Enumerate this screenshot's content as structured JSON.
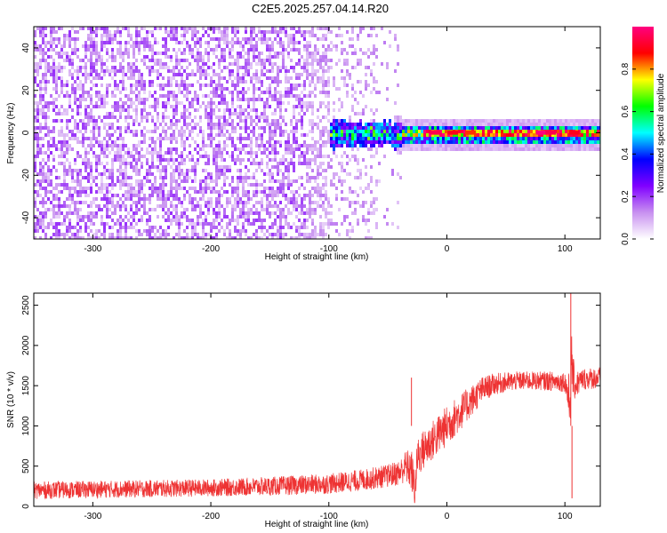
{
  "title": "C2E5.2025.257.04.14.R20",
  "chart_data": [
    {
      "type": "heatmap",
      "xlabel": "Height of straight line (km)",
      "ylabel": "Frequency (Hz)",
      "xlim": [
        -350,
        130
      ],
      "ylim": [
        -50,
        50
      ],
      "xticks": [
        -300,
        -200,
        -100,
        0,
        100
      ],
      "xtick_labels": [
        "-300",
        "-200",
        "-100",
        "0",
        "100"
      ],
      "yticks": [
        -40,
        -20,
        0,
        20,
        40
      ],
      "ytick_labels": [
        "-40",
        "-20",
        "0",
        "20",
        "40"
      ],
      "colorbar": {
        "label": "Normalized spectral amplitude",
        "range": [
          0,
          1
        ],
        "ticks": [
          0,
          0.2,
          0.4,
          0.6,
          0.8
        ],
        "tick_labels": [
          "0.0",
          "0.2",
          "0.4",
          "0.6",
          "0.8"
        ],
        "colormap": [
          "#ffffff",
          "#c890f0",
          "#8000ff",
          "#0000ff",
          "#00ffff",
          "#00ff00",
          "#ffff00",
          "#ff0000",
          "#ff0080"
        ]
      },
      "description_points": {
        "noise_region_x": [
          -350,
          -40
        ],
        "signal_band_center_hz": 0,
        "signal_band_start_km": -100
      }
    },
    {
      "type": "line",
      "xlabel": "Height of straight line (km)",
      "ylabel": "SNR (10 * v/v)",
      "xlim": [
        -350,
        130
      ],
      "ylim": [
        0,
        2650
      ],
      "xticks": [
        -300,
        -200,
        -100,
        0,
        100
      ],
      "xtick_labels": [
        "-300",
        "-200",
        "-100",
        "0",
        "100"
      ],
      "yticks": [
        0,
        500,
        1000,
        1500,
        2000,
        2500
      ],
      "ytick_labels": [
        "0",
        "500",
        "1000",
        "1500",
        "2000",
        "2500"
      ],
      "line_color": "#ee3333",
      "envelope": {
        "x": [
          -350,
          -300,
          -250,
          -200,
          -150,
          -100,
          -70,
          -50,
          -40,
          -35,
          -30,
          -27,
          -25,
          -20,
          -10,
          0,
          10,
          20,
          30,
          40,
          60,
          80,
          100,
          104,
          106,
          108,
          115,
          130
        ],
        "mean": [
          200,
          210,
          220,
          230,
          250,
          280,
          330,
          380,
          420,
          500,
          450,
          200,
          600,
          700,
          850,
          1000,
          1150,
          1300,
          1450,
          1520,
          1560,
          1560,
          1550,
          1300,
          1800,
          1500,
          1580,
          1600
        ],
        "spread": [
          120,
          120,
          120,
          120,
          130,
          140,
          150,
          160,
          180,
          220,
          300,
          250,
          280,
          280,
          280,
          280,
          260,
          220,
          180,
          150,
          130,
          130,
          140,
          400,
          500,
          200,
          150,
          150
        ]
      },
      "spikes": [
        {
          "x": -30,
          "y": 1600
        },
        {
          "x": 105,
          "y": 2650
        },
        {
          "x": 106,
          "y": 100
        }
      ]
    }
  ]
}
